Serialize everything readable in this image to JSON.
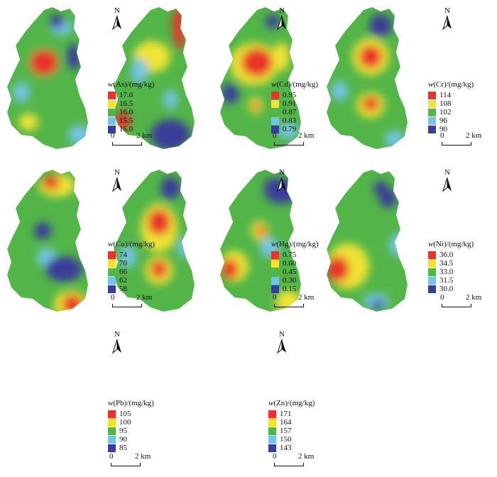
{
  "north_label": "N",
  "unit": "/(mg/kg)",
  "scale": {
    "zero": "0",
    "km": "2 km"
  },
  "colors": [
    "#e8332a",
    "#f0e334",
    "#52b548",
    "#74c4e4",
    "#3a3d99"
  ],
  "panels": [
    {
      "element": "As",
      "prefix": "w",
      "values": [
        "17.0",
        "16.5",
        "16.0",
        "15.5",
        "15.0"
      ]
    },
    {
      "element": "Cd",
      "prefix": "w",
      "values": [
        "0.95",
        "0.91",
        "0.87",
        "0.83",
        "0.79"
      ]
    },
    {
      "element": "Cr",
      "prefix": "w",
      "values": [
        "114",
        "108",
        "102",
        "96",
        "90"
      ]
    },
    {
      "element": "Cu",
      "prefix": "w",
      "values": [
        "74",
        "70",
        "66",
        "62",
        "58"
      ]
    },
    {
      "element": "Hg",
      "prefix": "w",
      "values": [
        "0.75",
        "0.60",
        "0.45",
        "0.30",
        "0.15"
      ]
    },
    {
      "element": "Ni",
      "prefix": "w",
      "values": [
        "36.0",
        "34.5",
        "33.0",
        "31.5",
        "30.0"
      ]
    },
    {
      "element": "Pb",
      "prefix": "w",
      "values": [
        "105",
        "100",
        "95",
        "90",
        "85"
      ]
    },
    {
      "element": "Zn",
      "prefix": "w",
      "values": [
        "171",
        "164",
        "157",
        "150",
        "143"
      ]
    }
  ]
}
